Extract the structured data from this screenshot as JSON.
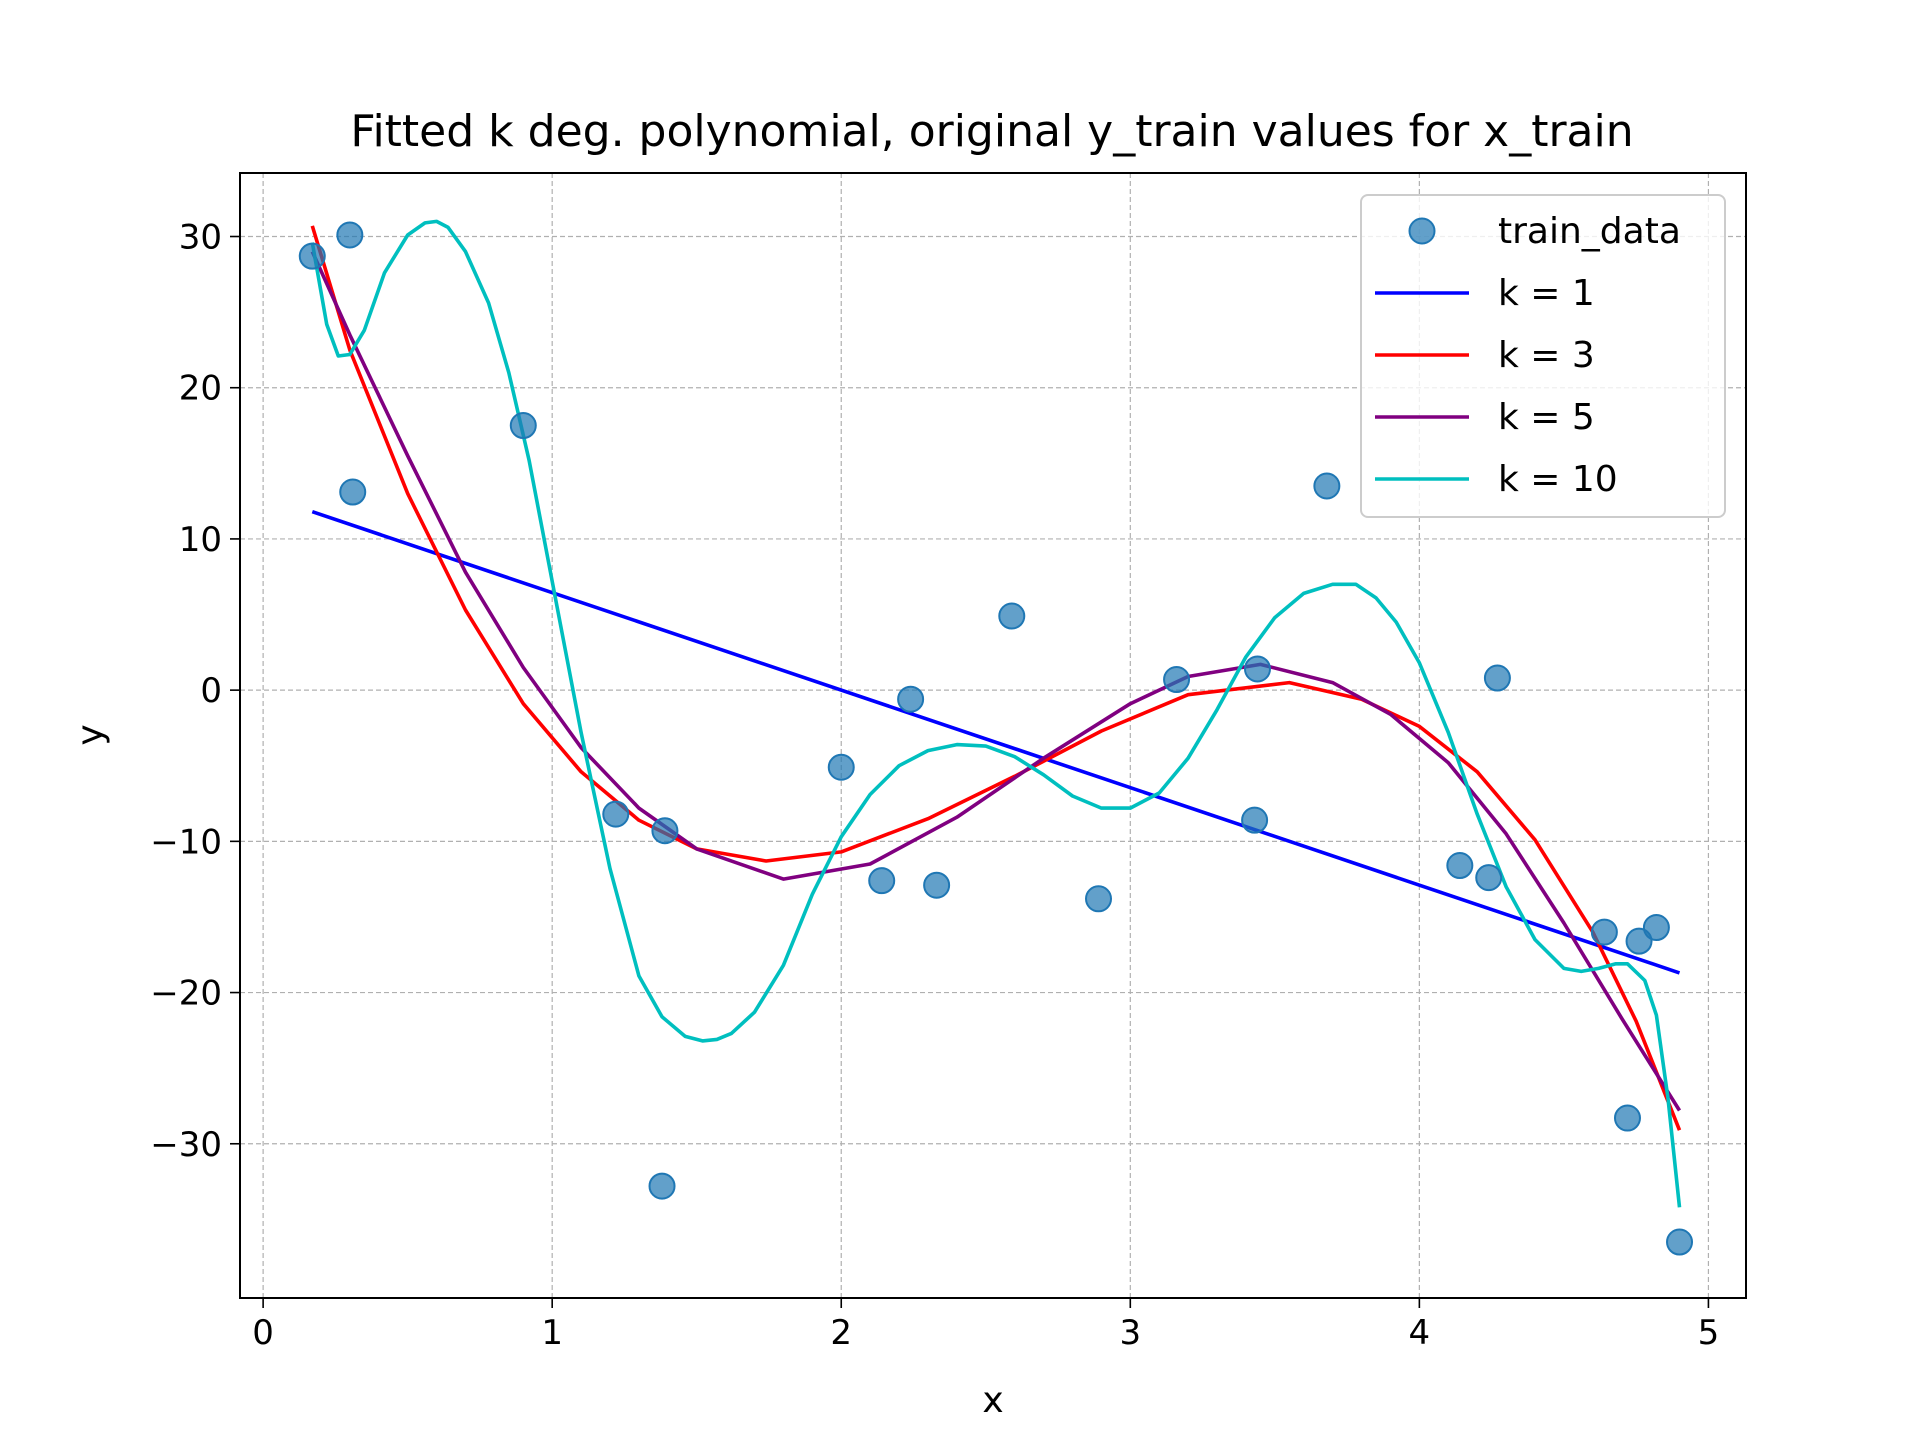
{
  "chart_data": {
    "type": "scatter",
    "title": "Fitted k deg. polynomial, original y_train values for x_train",
    "xlabel": "x",
    "ylabel": "y",
    "xlim": [
      -0.08,
      5.13
    ],
    "ylim": [
      -40.2,
      34.2
    ],
    "xticks": [
      0,
      1,
      2,
      3,
      4,
      5
    ],
    "xtick_labels": [
      "0",
      "1",
      "2",
      "3",
      "4",
      "5"
    ],
    "yticks": [
      30,
      20,
      10,
      0,
      -10,
      -20,
      -30
    ],
    "ytick_labels": [
      "30",
      "20",
      "10",
      "0",
      "−10",
      "−20",
      "−30"
    ],
    "grid": true,
    "legend_position": "top-right",
    "scatter": {
      "name": "train_data",
      "color": "#1f77b4",
      "points": [
        [
          0.17,
          28.7
        ],
        [
          0.3,
          30.1
        ],
        [
          0.31,
          13.1
        ],
        [
          0.9,
          17.5
        ],
        [
          1.22,
          -8.2
        ],
        [
          1.39,
          -9.3
        ],
        [
          1.38,
          -32.8
        ],
        [
          2.0,
          -5.1
        ],
        [
          2.14,
          -12.6
        ],
        [
          2.24,
          -0.6
        ],
        [
          2.33,
          -12.9
        ],
        [
          2.59,
          4.9
        ],
        [
          2.89,
          -13.8
        ],
        [
          3.16,
          0.7
        ],
        [
          3.43,
          -8.6
        ],
        [
          3.44,
          1.4
        ],
        [
          3.68,
          13.5
        ],
        [
          4.14,
          -11.6
        ],
        [
          4.24,
          -12.4
        ],
        [
          4.27,
          0.8
        ],
        [
          4.64,
          -16.0
        ],
        [
          4.72,
          -28.3
        ],
        [
          4.76,
          -16.6
        ],
        [
          4.82,
          -15.7
        ],
        [
          4.9,
          -36.5
        ]
      ]
    },
    "series": [
      {
        "name": "k = 1",
        "color": "#0000ff",
        "x": [
          0.17,
          4.9
        ],
        "y": [
          11.8,
          -18.7
        ]
      },
      {
        "name": "k = 3",
        "color": "#ff0000",
        "x": [
          0.17,
          0.3,
          0.5,
          0.7,
          0.9,
          1.1,
          1.3,
          1.5,
          1.74,
          2.0,
          2.3,
          2.6,
          2.9,
          3.2,
          3.55,
          3.8,
          4.0,
          4.2,
          4.4,
          4.6,
          4.75,
          4.9
        ],
        "y": [
          30.7,
          22.5,
          13.0,
          5.3,
          -0.9,
          -5.4,
          -8.6,
          -10.5,
          -11.3,
          -10.7,
          -8.5,
          -5.7,
          -2.7,
          -0.3,
          0.5,
          -0.6,
          -2.4,
          -5.4,
          -9.9,
          -16.0,
          -21.9,
          -29.1
        ]
      },
      {
        "name": "k = 5",
        "color": "#800080",
        "x": [
          0.17,
          0.3,
          0.5,
          0.7,
          0.9,
          1.1,
          1.3,
          1.5,
          1.8,
          2.1,
          2.4,
          2.7,
          3.0,
          3.2,
          3.45,
          3.7,
          3.9,
          4.1,
          4.3,
          4.5,
          4.7,
          4.9
        ],
        "y": [
          29.0,
          23.5,
          15.5,
          7.8,
          1.5,
          -3.8,
          -7.8,
          -10.5,
          -12.5,
          -11.5,
          -8.4,
          -4.5,
          -0.9,
          0.9,
          1.7,
          0.5,
          -1.6,
          -4.8,
          -9.5,
          -15.4,
          -21.7,
          -27.8
        ]
      },
      {
        "name": "k = 10",
        "color": "#00bfbf",
        "x": [
          0.17,
          0.22,
          0.26,
          0.3,
          0.35,
          0.42,
          0.5,
          0.56,
          0.6,
          0.64,
          0.7,
          0.78,
          0.85,
          0.92,
          1.0,
          1.1,
          1.2,
          1.3,
          1.38,
          1.46,
          1.52,
          1.57,
          1.62,
          1.7,
          1.8,
          1.9,
          2.0,
          2.1,
          2.2,
          2.3,
          2.4,
          2.5,
          2.6,
          2.7,
          2.8,
          2.9,
          3.0,
          3.1,
          3.2,
          3.3,
          3.4,
          3.5,
          3.6,
          3.7,
          3.78,
          3.85,
          3.92,
          4.0,
          4.1,
          4.2,
          4.3,
          4.4,
          4.5,
          4.56,
          4.62,
          4.68,
          4.72,
          4.78,
          4.82,
          4.86,
          4.9
        ],
        "y": [
          29.6,
          24.2,
          22.1,
          22.2,
          23.8,
          27.6,
          30.1,
          30.9,
          31.0,
          30.6,
          29.0,
          25.6,
          21.0,
          15.2,
          7.2,
          -2.8,
          -11.8,
          -18.9,
          -21.6,
          -22.9,
          -23.2,
          -23.1,
          -22.7,
          -21.3,
          -18.2,
          -13.5,
          -9.7,
          -6.9,
          -5.0,
          -4.0,
          -3.6,
          -3.7,
          -4.4,
          -5.6,
          -7.0,
          -7.8,
          -7.8,
          -6.8,
          -4.5,
          -1.3,
          2.2,
          4.8,
          6.4,
          7.0,
          7.0,
          6.1,
          4.5,
          1.8,
          -2.8,
          -8.2,
          -13.0,
          -16.5,
          -18.4,
          -18.6,
          -18.4,
          -18.1,
          -18.1,
          -19.2,
          -21.5,
          -27.0,
          -34.2
        ]
      }
    ]
  }
}
